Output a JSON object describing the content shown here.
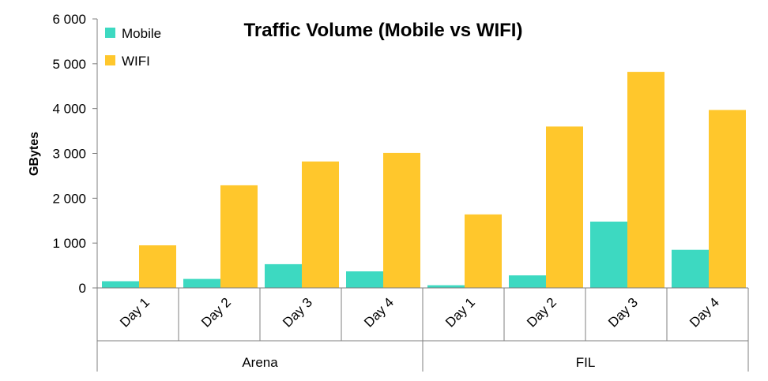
{
  "chart_data": {
    "type": "bar",
    "title": "Traffic Volume (Mobile vs WIFI)",
    "xlabel": "",
    "ylabel": "GBytes",
    "ylim": [
      0,
      6000
    ],
    "yticks": [
      0,
      1000,
      2000,
      3000,
      4000,
      5000,
      6000
    ],
    "ytick_labels": [
      "0",
      "1 000",
      "2 000",
      "3 000",
      "4 000",
      "5 000",
      "6 000"
    ],
    "grid": false,
    "legend_position": "top-left",
    "groups": [
      {
        "label": "Arena",
        "categories": [
          "Day 1",
          "Day 2",
          "Day 3",
          "Day 4"
        ]
      },
      {
        "label": "FIL",
        "categories": [
          "Day 1",
          "Day 2",
          "Day 3",
          "Day 4"
        ]
      }
    ],
    "categories": [
      "Day 1",
      "Day 2",
      "Day 3",
      "Day 4",
      "Day 1",
      "Day 2",
      "Day 3",
      "Day 4"
    ],
    "series": [
      {
        "name": "Mobile",
        "color": "#3dd9c1",
        "values": [
          150,
          200,
          530,
          370,
          60,
          280,
          1480,
          850
        ]
      },
      {
        "name": "WIFI",
        "color": "#ffc72c",
        "values": [
          950,
          2290,
          2820,
          3010,
          1640,
          3600,
          4820,
          3970
        ]
      }
    ]
  }
}
